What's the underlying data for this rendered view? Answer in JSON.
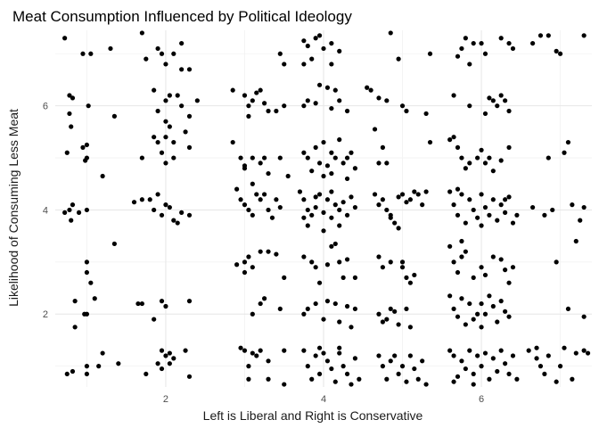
{
  "chart_data": {
    "type": "scatter",
    "title": "Meat Consumption Influenced by Political Ideology",
    "xlabel": "Left is Liberal and Right is Conservative",
    "ylabel": "Likelihood of Consuming Less Meat",
    "xlim": [
      0.6,
      7.4
    ],
    "ylim": [
      0.6,
      7.45
    ],
    "x_ticks": [
      2,
      4,
      6
    ],
    "y_ticks": [
      2,
      4,
      6
    ],
    "grid": true,
    "legend": "none",
    "point_color": "#000000",
    "points": [
      [
        0.72,
        7.3
      ],
      [
        0.95,
        7.0
      ],
      [
        1.05,
        7.0
      ],
      [
        1.3,
        7.1
      ],
      [
        1.7,
        7.4
      ],
      [
        1.75,
        6.9
      ],
      [
        1.9,
        7.1
      ],
      [
        2.0,
        6.8
      ],
      [
        2.1,
        7.0
      ],
      [
        2.2,
        7.2
      ],
      [
        2.3,
        6.7
      ],
      [
        2.2,
        6.7
      ],
      [
        1.95,
        7.0
      ],
      [
        0.78,
        6.2
      ],
      [
        0.82,
        6.15
      ],
      [
        0.78,
        5.85
      ],
      [
        0.8,
        5.6
      ],
      [
        1.02,
        6.0
      ],
      [
        1.35,
        5.8
      ],
      [
        1.85,
        6.3
      ],
      [
        2.0,
        6.1
      ],
      [
        2.05,
        6.2
      ],
      [
        1.9,
        5.9
      ],
      [
        2.2,
        6.0
      ],
      [
        2.4,
        6.1
      ],
      [
        2.0,
        5.7
      ],
      [
        2.3,
        5.8
      ],
      [
        2.15,
        6.2
      ],
      [
        0.75,
        5.1
      ],
      [
        0.95,
        5.2
      ],
      [
        1.0,
        5.25
      ],
      [
        1.0,
        5.0
      ],
      [
        0.98,
        4.95
      ],
      [
        1.2,
        4.65
      ],
      [
        1.7,
        5.0
      ],
      [
        1.85,
        5.4
      ],
      [
        1.9,
        5.3
      ],
      [
        1.95,
        5.1
      ],
      [
        2.0,
        5.4
      ],
      [
        2.05,
        5.6
      ],
      [
        2.1,
        5.3
      ],
      [
        2.25,
        5.5
      ],
      [
        2.3,
        5.2
      ],
      [
        2.0,
        4.9
      ],
      [
        2.1,
        5.0
      ],
      [
        0.72,
        3.95
      ],
      [
        0.78,
        4.0
      ],
      [
        0.82,
        4.1
      ],
      [
        0.8,
        3.8
      ],
      [
        0.9,
        3.95
      ],
      [
        1.0,
        4.0
      ],
      [
        1.6,
        4.15
      ],
      [
        1.7,
        4.2
      ],
      [
        1.8,
        4.2
      ],
      [
        1.9,
        4.3
      ],
      [
        1.85,
        4.0
      ],
      [
        1.95,
        3.9
      ],
      [
        2.0,
        4.1
      ],
      [
        2.1,
        3.8
      ],
      [
        2.15,
        3.75
      ],
      [
        2.2,
        3.95
      ],
      [
        2.3,
        3.9
      ],
      [
        2.05,
        4.05
      ],
      [
        1.35,
        3.35
      ],
      [
        1.0,
        3.0
      ],
      [
        1.0,
        2.8
      ],
      [
        1.05,
        2.6
      ],
      [
        0.85,
        2.25
      ],
      [
        1.1,
        2.3
      ],
      [
        0.85,
        1.75
      ],
      [
        0.97,
        2.0
      ],
      [
        1.0,
        2.0
      ],
      [
        1.65,
        2.2
      ],
      [
        1.7,
        2.2
      ],
      [
        1.95,
        2.25
      ],
      [
        2.0,
        2.15
      ],
      [
        2.3,
        2.25
      ],
      [
        1.85,
        1.9
      ],
      [
        0.75,
        0.85
      ],
      [
        0.82,
        0.9
      ],
      [
        1.0,
        1.0
      ],
      [
        1.0,
        0.85
      ],
      [
        1.15,
        1.0
      ],
      [
        1.2,
        1.25
      ],
      [
        1.4,
        1.05
      ],
      [
        1.75,
        0.85
      ],
      [
        1.9,
        1.05
      ],
      [
        2.0,
        1.2
      ],
      [
        1.95,
        1.3
      ],
      [
        2.05,
        1.25
      ],
      [
        2.1,
        1.15
      ],
      [
        2.25,
        1.3
      ],
      [
        2.3,
        0.8
      ],
      [
        1.95,
        0.95
      ],
      [
        2.05,
        1.05
      ],
      [
        2.85,
        6.3
      ],
      [
        3.0,
        6.2
      ],
      [
        3.05,
        6.0
      ],
      [
        3.1,
        6.1
      ],
      [
        3.2,
        6.3
      ],
      [
        3.3,
        5.9
      ],
      [
        3.4,
        5.9
      ],
      [
        3.5,
        6.0
      ],
      [
        3.25,
        6.05
      ],
      [
        3.05,
        5.8
      ],
      [
        3.15,
        6.25
      ],
      [
        2.85,
        5.3
      ],
      [
        2.95,
        5.0
      ],
      [
        3.0,
        4.85
      ],
      [
        3.1,
        5.0
      ],
      [
        3.2,
        4.9
      ],
      [
        3.25,
        5.0
      ],
      [
        3.45,
        5.0
      ],
      [
        3.0,
        4.8
      ],
      [
        3.3,
        4.7
      ],
      [
        3.1,
        4.5
      ],
      [
        3.55,
        4.65
      ],
      [
        2.9,
        4.4
      ],
      [
        2.95,
        4.2
      ],
      [
        3.0,
        4.1
      ],
      [
        3.05,
        4.0
      ],
      [
        3.15,
        4.3
      ],
      [
        3.2,
        4.2
      ],
      [
        3.3,
        4.0
      ],
      [
        3.35,
        3.85
      ],
      [
        3.4,
        4.2
      ],
      [
        3.45,
        4.05
      ],
      [
        3.25,
        4.3
      ],
      [
        3.1,
        3.9
      ],
      [
        2.9,
        2.95
      ],
      [
        3.0,
        3.0
      ],
      [
        3.05,
        3.1
      ],
      [
        3.1,
        2.9
      ],
      [
        3.2,
        3.2
      ],
      [
        3.3,
        3.2
      ],
      [
        3.4,
        3.15
      ],
      [
        3.5,
        2.7
      ],
      [
        3.0,
        2.8
      ],
      [
        3.2,
        2.2
      ],
      [
        3.1,
        2.0
      ],
      [
        3.25,
        2.3
      ],
      [
        3.45,
        2.1
      ],
      [
        2.95,
        1.35
      ],
      [
        3.0,
        1.3
      ],
      [
        3.1,
        1.25
      ],
      [
        3.15,
        1.2
      ],
      [
        3.2,
        1.3
      ],
      [
        3.3,
        1.1
      ],
      [
        3.5,
        1.3
      ],
      [
        3.05,
        0.75
      ],
      [
        3.3,
        0.75
      ],
      [
        3.5,
        0.65
      ],
      [
        3.05,
        1.0
      ],
      [
        3.45,
        7.0
      ],
      [
        3.5,
        6.8
      ],
      [
        3.75,
        7.25
      ],
      [
        3.8,
        7.15
      ],
      [
        3.9,
        7.3
      ],
      [
        3.95,
        7.35
      ],
      [
        4.0,
        7.1
      ],
      [
        4.1,
        7.2
      ],
      [
        4.2,
        7.05
      ],
      [
        3.85,
        6.9
      ],
      [
        4.1,
        6.8
      ],
      [
        4.85,
        7.4
      ],
      [
        4.95,
        6.9
      ],
      [
        3.75,
        6.8
      ],
      [
        3.75,
        6.0
      ],
      [
        3.8,
        6.1
      ],
      [
        3.9,
        6.05
      ],
      [
        3.95,
        6.4
      ],
      [
        4.05,
        6.35
      ],
      [
        4.15,
        6.3
      ],
      [
        4.2,
        6.1
      ],
      [
        4.3,
        5.9
      ],
      [
        4.1,
        5.95
      ],
      [
        4.55,
        6.35
      ],
      [
        4.6,
        6.3
      ],
      [
        4.7,
        6.15
      ],
      [
        4.8,
        6.1
      ],
      [
        5.0,
        6.0
      ],
      [
        5.05,
        5.9
      ],
      [
        3.75,
        5.1
      ],
      [
        3.8,
        5.0
      ],
      [
        3.85,
        4.75
      ],
      [
        3.9,
        5.2
      ],
      [
        3.95,
        4.9
      ],
      [
        4.0,
        5.3
      ],
      [
        4.05,
        4.85
      ],
      [
        4.1,
        4.7
      ],
      [
        4.15,
        5.0
      ],
      [
        4.2,
        5.35
      ],
      [
        4.25,
        4.9
      ],
      [
        4.3,
        5.0
      ],
      [
        4.35,
        5.1
      ],
      [
        4.4,
        4.8
      ],
      [
        4.3,
        4.6
      ],
      [
        4.0,
        4.65
      ],
      [
        4.1,
        5.1
      ],
      [
        4.65,
        5.55
      ],
      [
        4.75,
        5.2
      ],
      [
        4.7,
        4.9
      ],
      [
        4.8,
        4.9
      ],
      [
        5.3,
        5.85
      ],
      [
        5.35,
        5.3
      ],
      [
        3.7,
        4.35
      ],
      [
        3.75,
        4.2
      ],
      [
        3.8,
        4.0
      ],
      [
        3.85,
        3.9
      ],
      [
        3.9,
        4.05
      ],
      [
        3.95,
        4.3
      ],
      [
        4.0,
        3.95
      ],
      [
        4.05,
        4.2
      ],
      [
        4.1,
        3.85
      ],
      [
        4.15,
        4.1
      ],
      [
        4.2,
        4.0
      ],
      [
        4.25,
        4.15
      ],
      [
        4.3,
        3.9
      ],
      [
        4.35,
        4.25
      ],
      [
        4.4,
        4.05
      ],
      [
        3.8,
        3.7
      ],
      [
        4.0,
        3.6
      ],
      [
        4.2,
        3.7
      ],
      [
        3.9,
        4.25
      ],
      [
        4.1,
        4.35
      ],
      [
        3.75,
        3.85
      ],
      [
        4.65,
        4.3
      ],
      [
        4.7,
        4.1
      ],
      [
        4.75,
        4.2
      ],
      [
        4.8,
        4.0
      ],
      [
        4.85,
        3.9
      ],
      [
        4.9,
        3.75
      ],
      [
        4.95,
        4.25
      ],
      [
        5.0,
        4.3
      ],
      [
        5.05,
        4.15
      ],
      [
        5.1,
        4.2
      ],
      [
        5.15,
        4.35
      ],
      [
        5.2,
        4.3
      ],
      [
        5.25,
        4.1
      ],
      [
        5.3,
        4.35
      ],
      [
        4.95,
        3.65
      ],
      [
        4.85,
        3.85
      ],
      [
        3.75,
        3.1
      ],
      [
        3.85,
        3.0
      ],
      [
        3.9,
        2.9
      ],
      [
        3.95,
        2.6
      ],
      [
        4.05,
        2.95
      ],
      [
        4.1,
        3.3
      ],
      [
        4.15,
        3.35
      ],
      [
        4.2,
        3.0
      ],
      [
        4.25,
        2.7
      ],
      [
        4.3,
        3.05
      ],
      [
        4.4,
        2.7
      ],
      [
        4.7,
        3.1
      ],
      [
        4.75,
        2.9
      ],
      [
        4.85,
        3.0
      ],
      [
        5.0,
        2.9
      ],
      [
        5.05,
        2.7
      ],
      [
        5.1,
        2.6
      ],
      [
        5.15,
        2.75
      ],
      [
        5.0,
        3.0
      ],
      [
        3.75,
        2.0
      ],
      [
        3.8,
        2.1
      ],
      [
        3.9,
        2.2
      ],
      [
        4.0,
        1.9
      ],
      [
        4.05,
        2.25
      ],
      [
        4.15,
        2.2
      ],
      [
        4.2,
        1.85
      ],
      [
        4.3,
        2.15
      ],
      [
        4.35,
        1.75
      ],
      [
        4.4,
        2.1
      ],
      [
        4.7,
        2.0
      ],
      [
        4.8,
        1.9
      ],
      [
        4.85,
        2.1
      ],
      [
        4.9,
        2.05
      ],
      [
        4.95,
        1.8
      ],
      [
        5.05,
        2.1
      ],
      [
        5.1,
        1.75
      ],
      [
        4.75,
        1.85
      ],
      [
        3.75,
        1.3
      ],
      [
        3.8,
        1.0
      ],
      [
        3.85,
        0.75
      ],
      [
        3.9,
        1.2
      ],
      [
        3.95,
        0.85
      ],
      [
        4.0,
        1.25
      ],
      [
        4.05,
        1.1
      ],
      [
        4.1,
        0.95
      ],
      [
        4.15,
        0.7
      ],
      [
        4.2,
        1.25
      ],
      [
        4.25,
        1.0
      ],
      [
        4.3,
        0.85
      ],
      [
        4.35,
        0.65
      ],
      [
        4.4,
        1.15
      ],
      [
        4.45,
        0.75
      ],
      [
        4.7,
        1.2
      ],
      [
        4.75,
        1.0
      ],
      [
        4.8,
        0.75
      ],
      [
        4.85,
        1.1
      ],
      [
        4.9,
        1.2
      ],
      [
        4.95,
        0.85
      ],
      [
        5.0,
        1.0
      ],
      [
        5.05,
        0.7
      ],
      [
        5.1,
        1.2
      ],
      [
        5.15,
        0.95
      ],
      [
        5.2,
        0.75
      ],
      [
        5.25,
        1.1
      ],
      [
        5.3,
        0.65
      ],
      [
        4.2,
        1.35
      ],
      [
        3.95,
        1.35
      ],
      [
        5.35,
        7.0
      ],
      [
        5.7,
        6.95
      ],
      [
        5.75,
        7.1
      ],
      [
        5.8,
        7.3
      ],
      [
        5.9,
        7.2
      ],
      [
        6.0,
        7.2
      ],
      [
        6.05,
        7.0
      ],
      [
        5.85,
        6.8
      ],
      [
        6.25,
        7.3
      ],
      [
        6.35,
        7.2
      ],
      [
        6.4,
        7.1
      ],
      [
        6.65,
        7.2
      ],
      [
        6.75,
        7.35
      ],
      [
        6.85,
        7.35
      ],
      [
        6.95,
        7.05
      ],
      [
        7.0,
        7.0
      ],
      [
        7.3,
        7.35
      ],
      [
        5.65,
        6.2
      ],
      [
        5.85,
        6.0
      ],
      [
        6.1,
        6.15
      ],
      [
        6.15,
        6.1
      ],
      [
        6.2,
        6.0
      ],
      [
        6.25,
        6.2
      ],
      [
        6.3,
        6.1
      ],
      [
        6.35,
        5.9
      ],
      [
        6.05,
        5.85
      ],
      [
        5.6,
        5.35
      ],
      [
        5.65,
        5.4
      ],
      [
        5.7,
        5.2
      ],
      [
        5.75,
        5.0
      ],
      [
        5.8,
        4.8
      ],
      [
        5.85,
        4.9
      ],
      [
        5.95,
        5.0
      ],
      [
        6.05,
        4.9
      ],
      [
        6.15,
        4.75
      ],
      [
        6.25,
        4.95
      ],
      [
        6.35,
        5.2
      ],
      [
        6.0,
        5.15
      ],
      [
        6.85,
        5.0
      ],
      [
        7.05,
        5.1
      ],
      [
        7.1,
        5.3
      ],
      [
        6.1,
        5.0
      ],
      [
        5.6,
        4.35
      ],
      [
        5.65,
        4.1
      ],
      [
        5.7,
        3.9
      ],
      [
        5.75,
        4.3
      ],
      [
        5.8,
        3.75
      ],
      [
        5.85,
        4.2
      ],
      [
        5.9,
        4.0
      ],
      [
        5.95,
        3.85
      ],
      [
        6.0,
        4.3
      ],
      [
        6.05,
        4.05
      ],
      [
        6.1,
        3.9
      ],
      [
        6.15,
        4.2
      ],
      [
        6.2,
        3.8
      ],
      [
        6.25,
        4.1
      ],
      [
        6.3,
        3.95
      ],
      [
        6.35,
        4.25
      ],
      [
        6.4,
        3.75
      ],
      [
        6.45,
        3.9
      ],
      [
        5.7,
        4.4
      ],
      [
        6.0,
        3.7
      ],
      [
        6.3,
        4.2
      ],
      [
        6.65,
        4.05
      ],
      [
        6.8,
        3.9
      ],
      [
        6.9,
        4.0
      ],
      [
        7.15,
        4.1
      ],
      [
        7.3,
        4.05
      ],
      [
        7.25,
        3.8
      ],
      [
        5.6,
        3.3
      ],
      [
        5.65,
        3.0
      ],
      [
        5.7,
        2.8
      ],
      [
        5.75,
        3.1
      ],
      [
        5.8,
        3.2
      ],
      [
        5.9,
        2.7
      ],
      [
        6.0,
        2.9
      ],
      [
        6.05,
        2.75
      ],
      [
        6.15,
        3.1
      ],
      [
        6.3,
        2.85
      ],
      [
        6.35,
        2.6
      ],
      [
        6.4,
        2.9
      ],
      [
        5.75,
        3.4
      ],
      [
        6.25,
        3.05
      ],
      [
        6.95,
        3.0
      ],
      [
        7.2,
        3.4
      ],
      [
        5.6,
        2.35
      ],
      [
        5.65,
        2.1
      ],
      [
        5.7,
        1.95
      ],
      [
        5.75,
        2.3
      ],
      [
        5.8,
        1.8
      ],
      [
        5.85,
        2.2
      ],
      [
        5.9,
        1.9
      ],
      [
        5.95,
        2.0
      ],
      [
        6.0,
        2.2
      ],
      [
        6.05,
        2.0
      ],
      [
        6.1,
        2.35
      ],
      [
        6.15,
        2.15
      ],
      [
        6.2,
        1.85
      ],
      [
        6.25,
        2.25
      ],
      [
        6.3,
        2.05
      ],
      [
        6.35,
        1.95
      ],
      [
        6.0,
        1.75
      ],
      [
        7.1,
        2.1
      ],
      [
        7.3,
        1.95
      ],
      [
        5.6,
        1.3
      ],
      [
        5.65,
        1.2
      ],
      [
        5.7,
        0.8
      ],
      [
        5.75,
        1.1
      ],
      [
        5.8,
        0.95
      ],
      [
        5.85,
        1.3
      ],
      [
        5.9,
        0.85
      ],
      [
        5.95,
        1.2
      ],
      [
        6.0,
        1.0
      ],
      [
        6.05,
        1.25
      ],
      [
        6.1,
        0.75
      ],
      [
        6.15,
        1.15
      ],
      [
        6.2,
        0.9
      ],
      [
        6.25,
        1.3
      ],
      [
        6.3,
        1.05
      ],
      [
        6.35,
        0.85
      ],
      [
        6.4,
        1.2
      ],
      [
        6.45,
        0.75
      ],
      [
        5.65,
        0.7
      ],
      [
        5.9,
        0.65
      ],
      [
        6.6,
        1.3
      ],
      [
        6.7,
        1.35
      ],
      [
        6.75,
        1.0
      ],
      [
        6.8,
        0.85
      ],
      [
        6.85,
        1.2
      ],
      [
        6.95,
        0.7
      ],
      [
        7.0,
        1.0
      ],
      [
        7.05,
        1.35
      ],
      [
        7.15,
        0.75
      ],
      [
        7.2,
        1.25
      ],
      [
        7.3,
        1.3
      ],
      [
        7.35,
        1.25
      ],
      [
        6.7,
        1.15
      ]
    ]
  }
}
